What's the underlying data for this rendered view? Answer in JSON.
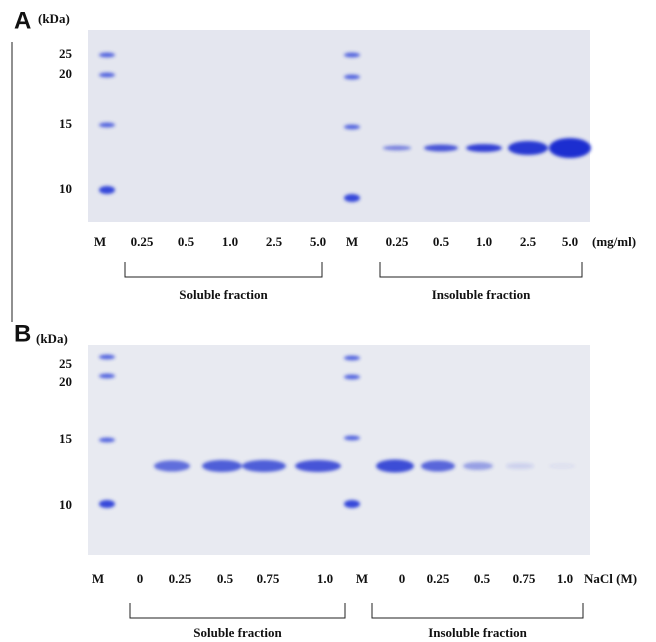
{
  "panels": [
    {
      "label": "A",
      "unit": "(kDa)",
      "mw_labels": [
        "25",
        "20",
        "15",
        "10"
      ],
      "lanes": [
        "M",
        "0.25",
        "0.5",
        "1.0",
        "2.5",
        "5.0",
        "M",
        "0.25",
        "0.5",
        "1.0",
        "2.5",
        "5.0"
      ],
      "lane_unit": "(mg/ml)",
      "fractions": [
        "Soluble fraction",
        "Insoluble fraction"
      ]
    },
    {
      "label": "B",
      "unit": "(kDa)",
      "mw_labels": [
        "25",
        "20",
        "15",
        "10"
      ],
      "lanes": [
        "M",
        "0",
        "0.25",
        "0.5",
        "0.75",
        "1.0",
        "M",
        "0",
        "0.25",
        "0.5",
        "0.75",
        "1.0"
      ],
      "lane_unit": "NaCl (M)",
      "fractions": [
        "Soluble fraction",
        "Insoluble fraction"
      ]
    }
  ]
}
